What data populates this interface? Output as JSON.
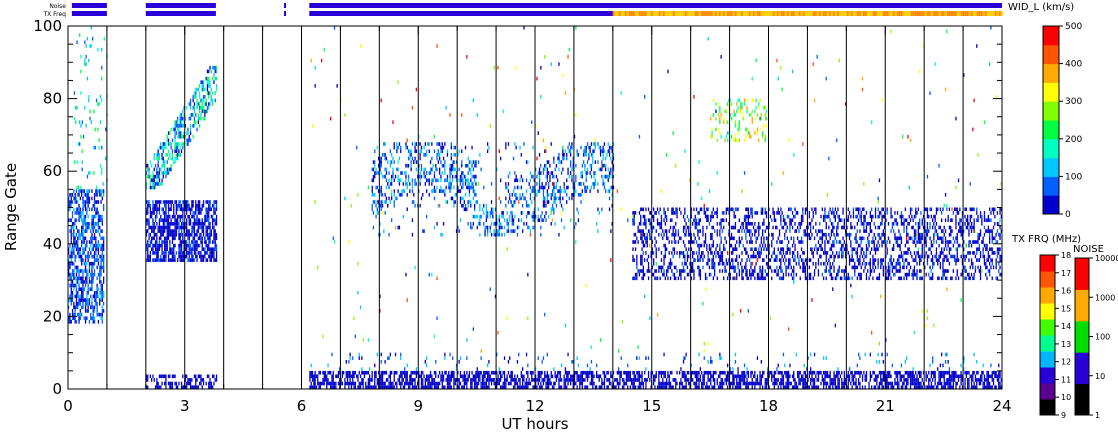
{
  "chart_data": {
    "type": "heatmap",
    "xlabel": "UT hours",
    "ylabel": "Range Gate",
    "xlim": [
      0,
      24
    ],
    "ylim": [
      0,
      100
    ],
    "xticks": [
      "0",
      "3",
      "6",
      "9",
      "12",
      "15",
      "18",
      "21",
      "24"
    ],
    "yticks": [
      "0",
      "20",
      "40",
      "60",
      "80",
      "100"
    ],
    "scan_boundaries_hours": [
      1,
      2,
      3,
      4,
      5,
      6,
      7,
      8,
      9,
      10,
      11,
      12,
      13,
      14,
      15,
      16,
      17,
      18,
      19,
      20,
      21,
      22,
      23
    ],
    "status_bars": {
      "noise_label": "Noise",
      "txfreq_label": "TX Freq",
      "segments_hours": [
        [
          0.1,
          1.0
        ],
        [
          2.0,
          3.8
        ],
        [
          5.55,
          5.6
        ],
        [
          6.2,
          24.0
        ]
      ],
      "txfreq_mixed_from_hour": 14.0,
      "primary_color": "#2a00d8",
      "mixed_colors": [
        "#ffcc00",
        "#ff8800"
      ]
    },
    "colorbars": [
      {
        "title": "WID_L (km/s)",
        "ticks": [
          "0",
          "100",
          "200",
          "300",
          "400",
          "500"
        ],
        "range": [
          0,
          500
        ],
        "colors": [
          "#0000cc",
          "#0060ff",
          "#00c8ff",
          "#00ffc0",
          "#00ff40",
          "#80ff00",
          "#ffff00",
          "#ffaa00",
          "#ff5500",
          "#ff0000"
        ]
      },
      {
        "title": "TX FRQ (MHz)",
        "ticks": [
          "9",
          "10",
          "11",
          "12",
          "13",
          "14",
          "15",
          "16",
          "17",
          "18"
        ],
        "colors": [
          "#000000",
          "#5a0090",
          "#2a00d8",
          "#00b8ff",
          "#00ff90",
          "#40ff00",
          "#ffff00",
          "#ffaa00",
          "#ff5500",
          "#ff0000"
        ]
      },
      {
        "title": "NOISE",
        "ticks": [
          "1",
          "10",
          "100",
          "1000",
          "10000"
        ],
        "colors": [
          "#000000",
          "#2a00d8",
          "#00dd00",
          "#ffaa00",
          "#ff0000"
        ]
      }
    ],
    "data_regions": [
      {
        "name": "early-echoes",
        "t0": 0.0,
        "t1": 0.9,
        "g0": 18,
        "g1": 55,
        "value_range": [
          0,
          120
        ]
      },
      {
        "name": "early-high-sparse",
        "t0": 0.15,
        "t1": 1.0,
        "g0": 55,
        "g1": 100,
        "value_range": [
          50,
          250
        ]
      },
      {
        "name": "morning-band-mid",
        "t0": 2.0,
        "t1": 3.8,
        "g0": 35,
        "g1": 52,
        "value_range": [
          0,
          60
        ]
      },
      {
        "name": "morning-band-rising",
        "t0": 2.0,
        "t1": 3.8,
        "g0": 55,
        "g1": 90,
        "value_range": [
          0,
          250
        ]
      },
      {
        "name": "morning-near-range",
        "t0": 2.0,
        "t1": 3.8,
        "g0": 0,
        "g1": 4,
        "value_range": [
          0,
          40
        ]
      },
      {
        "name": "near-range-echoes",
        "t0": 6.2,
        "t1": 24.0,
        "g0": 0,
        "g1": 5,
        "value_range": [
          0,
          30
        ]
      },
      {
        "name": "near-range-upper",
        "t0": 6.2,
        "t1": 24.0,
        "g0": 5,
        "g1": 10,
        "value_range": [
          0,
          150
        ]
      },
      {
        "name": "midday-band",
        "t0": 7.8,
        "t1": 14.0,
        "g0": 42,
        "g1": 68,
        "value_range": [
          0,
          150
        ]
      },
      {
        "name": "afternoon-band",
        "t0": 14.5,
        "t1": 24.0,
        "g0": 30,
        "g1": 50,
        "value_range": [
          0,
          60
        ]
      },
      {
        "name": "afternoon-patch",
        "t0": 16.5,
        "t1": 18.0,
        "g0": 68,
        "g1": 80,
        "value_range": [
          150,
          400
        ]
      },
      {
        "name": "scattered-echoes",
        "t0": 6.2,
        "t1": 24.0,
        "g0": 10,
        "g1": 100,
        "value_range": [
          0,
          500
        ]
      }
    ]
  }
}
